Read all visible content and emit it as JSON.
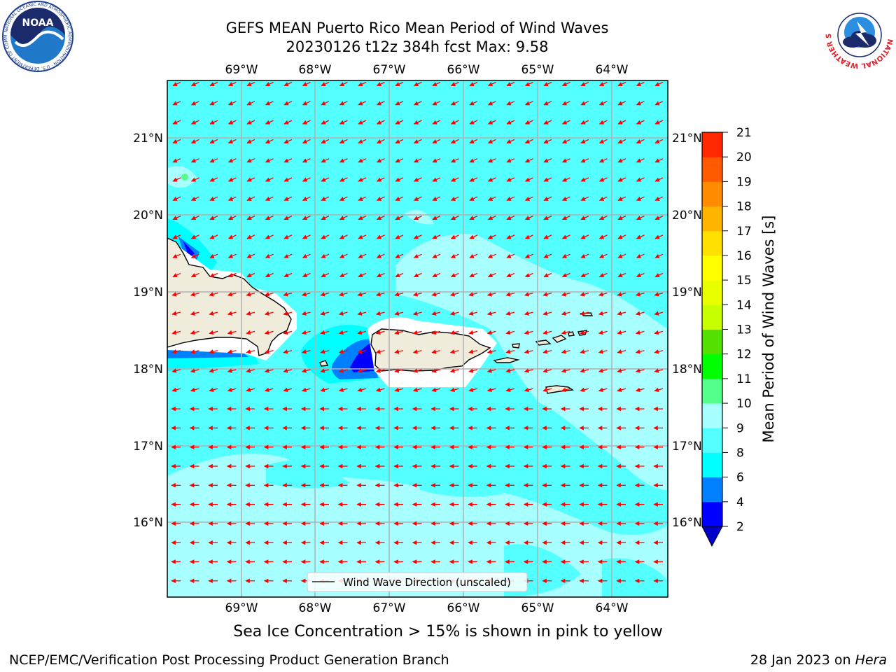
{
  "title": {
    "line1": "GEFS MEAN Puerto Rico Mean Period of Wind Waves",
    "line2": "20230126 t12z 384h fcst   Max: 9.58"
  },
  "map": {
    "lon_labels": [
      "69°W",
      "68°W",
      "67°W",
      "66°W",
      "65°W",
      "64°W"
    ],
    "lat_labels": [
      "21°N",
      "20°N",
      "19°N",
      "18°N",
      "17°N",
      "16°N"
    ],
    "legend": "Wind Wave Direction (unscaled)",
    "ocean_color": "#54ffff",
    "land_color": "#f0ecdc",
    "arrow_color": "#ff0000"
  },
  "colorbar": {
    "label": "Mean Period of Wind Waves [s]",
    "ticks": [
      "2",
      "4",
      "6",
      "8",
      "9",
      "10",
      "11",
      "12",
      "13",
      "14",
      "15",
      "16",
      "17",
      "18",
      "19",
      "20",
      "21"
    ],
    "colors": [
      "#0000ff",
      "#0080ff",
      "#00ffff",
      "#54ffff",
      "#a8ffff",
      "#54ff8c",
      "#00ff00",
      "#54e000",
      "#c8ff00",
      "#e8ff00",
      "#ffff00",
      "#ffe000",
      "#ffb400",
      "#ff8c00",
      "#ff5a00",
      "#ff2800",
      "#ff0000"
    ],
    "under_color": "#0000c8"
  },
  "note": "Sea Ice Concentration > 15% is shown in pink to yellow",
  "footer": {
    "left": "NCEP/EMC/Verification Post Processing Product Generation Branch",
    "right_prefix": "28 Jan 2023 on ",
    "right_host": "Hera"
  },
  "logos": {
    "noaa": "NOAA",
    "noaa_ring": "NATIONAL OCEANIC AND ATMOSPHERIC ADMINISTRATION · U.S. DEPARTMENT OF COMMERCE",
    "nws_ring": "NATIONAL WEATHER SERVICE"
  }
}
